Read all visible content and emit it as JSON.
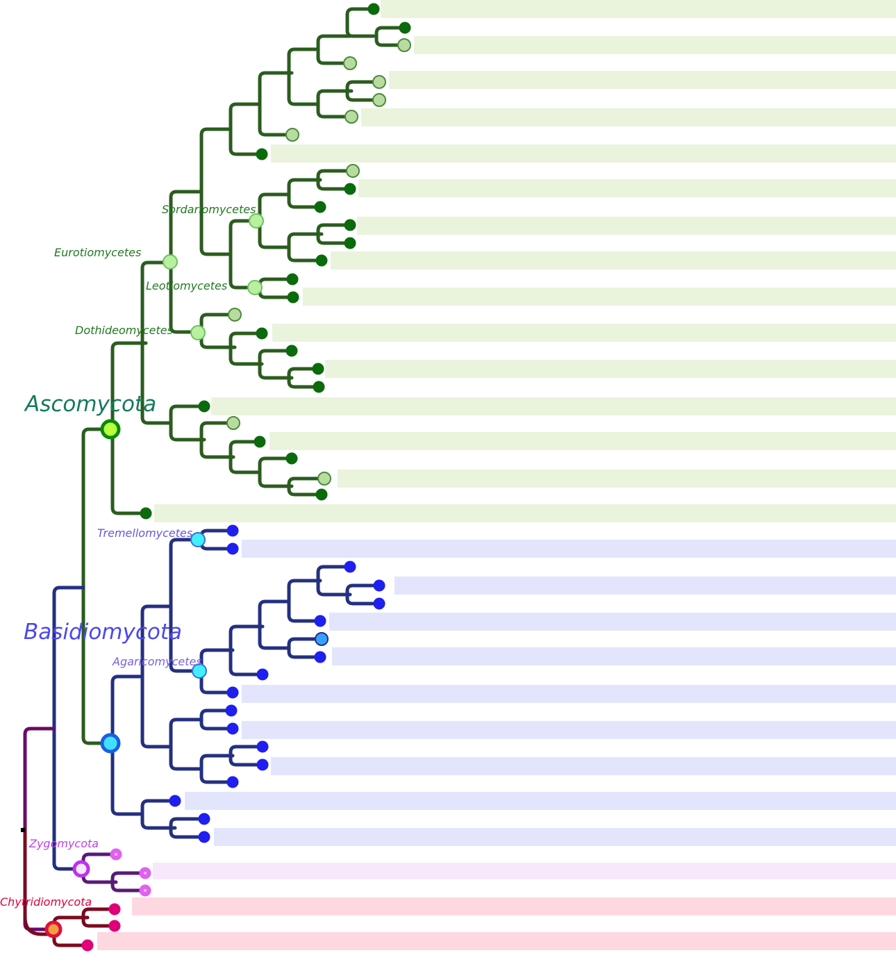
{
  "phyla": [
    {
      "label": "Ascomycota",
      "color": "#137a5c"
    },
    {
      "label": "Basidiomycota",
      "color": "#4a47f2"
    }
  ],
  "clades": [
    {
      "label": "Sordariomycetes",
      "color": "#1f7a1f"
    },
    {
      "label": "Eurotiomycetes",
      "color": "#1f7a1f"
    },
    {
      "label": "Leotiomycetes",
      "color": "#1f7a1f"
    },
    {
      "label": "Dothideomycetes",
      "color": "#1f7a1f"
    },
    {
      "label": "Tremellomycetes",
      "color": "#6a55e0"
    },
    {
      "label": "Agaricomycetes",
      "color": "#7a60e6"
    },
    {
      "label": "Zygomycota",
      "color": "#c040e8"
    },
    {
      "label": "Chytridiomycota",
      "color": "#e0003a"
    }
  ],
  "colors": {
    "ascomycota_branch": "#2b5c1f",
    "basidiomycota_branch": "#243080",
    "zygomycota_branch": "#5a1a78",
    "chytridiomycota_branch": "#7a0a20",
    "root_branch": "#6a0a6a",
    "asco_band": "#eaf3dc",
    "basidio_band": "#e2e5fc",
    "zygo_band": "#f7e8fc",
    "chytrid_band": "#fdd8e0"
  }
}
